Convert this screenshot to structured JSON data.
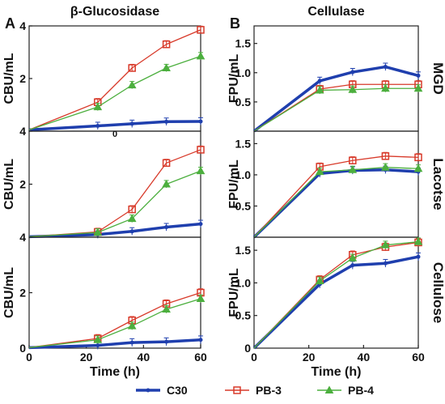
{
  "figure": {
    "panel_labels": [
      "A",
      "B"
    ],
    "legend": [
      {
        "label": "C30",
        "color": "#1f3fae",
        "marker": "circle"
      },
      {
        "label": "PB-3",
        "color": "#d83a2a",
        "marker": "square"
      },
      {
        "label": "PB-4",
        "color": "#4caf3e",
        "marker": "triangle"
      }
    ]
  },
  "chart_data": [
    {
      "type": "line",
      "title": "β-Glucosidase",
      "row_label": "",
      "xlabel": "",
      "ylabel": "CBU/mL",
      "xlim": [
        0,
        60
      ],
      "ylim": [
        0,
        4
      ],
      "yticks": [
        "2",
        "4"
      ],
      "xticks": [],
      "baseline_tick": "0",
      "x": [
        0,
        24,
        36,
        48,
        60
      ],
      "series": [
        {
          "name": "C30",
          "values": [
            0.05,
            0.2,
            0.28,
            0.36,
            0.37
          ]
        },
        {
          "name": "PB-3",
          "values": [
            0.05,
            1.1,
            2.4,
            3.3,
            3.85
          ]
        },
        {
          "name": "PB-4",
          "values": [
            0.05,
            0.92,
            1.75,
            2.4,
            2.85
          ]
        }
      ]
    },
    {
      "type": "line",
      "title": "Cellulase",
      "row_label": "MGD",
      "xlabel": "",
      "ylabel": "FPU/mL",
      "xlim": [
        0,
        60
      ],
      "ylim": [
        0,
        1.8
      ],
      "yticks": [
        "0.5",
        "1.0",
        "1.5"
      ],
      "xticks": [],
      "x": [
        0,
        24,
        36,
        48,
        60
      ],
      "series": [
        {
          "name": "C30",
          "values": [
            0,
            0.86,
            1.01,
            1.1,
            0.95
          ]
        },
        {
          "name": "PB-3",
          "values": [
            0,
            0.72,
            0.8,
            0.8,
            0.8
          ]
        },
        {
          "name": "PB-4",
          "values": [
            0,
            0.7,
            0.71,
            0.73,
            0.73
          ]
        }
      ]
    },
    {
      "type": "line",
      "title": "",
      "row_label": "",
      "xlabel": "",
      "ylabel": "CBU/mL",
      "xlim": [
        0,
        60
      ],
      "ylim": [
        0,
        4
      ],
      "yticks": [
        "2",
        "4"
      ],
      "xticks": [],
      "x": [
        0,
        24,
        36,
        48,
        60
      ],
      "series": [
        {
          "name": "C30",
          "values": [
            0.02,
            0.1,
            0.22,
            0.38,
            0.5
          ]
        },
        {
          "name": "PB-3",
          "values": [
            0.02,
            0.2,
            1.05,
            2.8,
            3.3
          ]
        },
        {
          "name": "PB-4",
          "values": [
            0.02,
            0.18,
            0.7,
            2.0,
            2.5
          ]
        }
      ]
    },
    {
      "type": "line",
      "title": "",
      "row_label": "Lacotse",
      "xlabel": "",
      "ylabel": "FPU/mL",
      "xlim": [
        0,
        60
      ],
      "ylim": [
        0,
        1.7
      ],
      "yticks": [
        "0.5",
        "1.0",
        "1.5"
      ],
      "xticks": [],
      "x": [
        0,
        24,
        36,
        48,
        60
      ],
      "series": [
        {
          "name": "C30",
          "values": [
            0,
            1.02,
            1.07,
            1.08,
            1.05
          ]
        },
        {
          "name": "PB-3",
          "values": [
            0,
            1.13,
            1.23,
            1.3,
            1.28
          ]
        },
        {
          "name": "PB-4",
          "values": [
            0,
            1.05,
            1.08,
            1.12,
            1.1
          ]
        }
      ]
    },
    {
      "type": "line",
      "title": "",
      "row_label": "",
      "xlabel": "Time (h)",
      "ylabel": "CBU/mL",
      "xlim": [
        0,
        60
      ],
      "ylim": [
        0,
        4
      ],
      "yticks": [
        "0",
        "2",
        "4"
      ],
      "xticks": [
        "0",
        "20",
        "40",
        "60"
      ],
      "x": [
        0,
        24,
        36,
        48,
        60
      ],
      "series": [
        {
          "name": "C30",
          "values": [
            0.02,
            0.1,
            0.2,
            0.23,
            0.3
          ]
        },
        {
          "name": "PB-3",
          "values": [
            0.02,
            0.35,
            1.0,
            1.6,
            2.0
          ]
        },
        {
          "name": "PB-4",
          "values": [
            0.02,
            0.3,
            0.8,
            1.4,
            1.78
          ]
        }
      ]
    },
    {
      "type": "line",
      "title": "",
      "row_label": "Cellulose",
      "xlabel": "Time (h)",
      "ylabel": "FPU/mL",
      "xlim": [
        0,
        60
      ],
      "ylim": [
        0,
        1.7
      ],
      "yticks": [
        "0",
        "0.5",
        "1.0",
        "1.5"
      ],
      "xticks": [
        "0",
        "20",
        "40",
        "60"
      ],
      "x": [
        0,
        24,
        36,
        48,
        60
      ],
      "series": [
        {
          "name": "C30",
          "values": [
            0,
            0.98,
            1.27,
            1.3,
            1.4
          ]
        },
        {
          "name": "PB-3",
          "values": [
            0,
            1.05,
            1.43,
            1.55,
            1.62
          ]
        },
        {
          "name": "PB-4",
          "values": [
            0,
            1.03,
            1.38,
            1.58,
            1.63
          ]
        }
      ]
    }
  ]
}
